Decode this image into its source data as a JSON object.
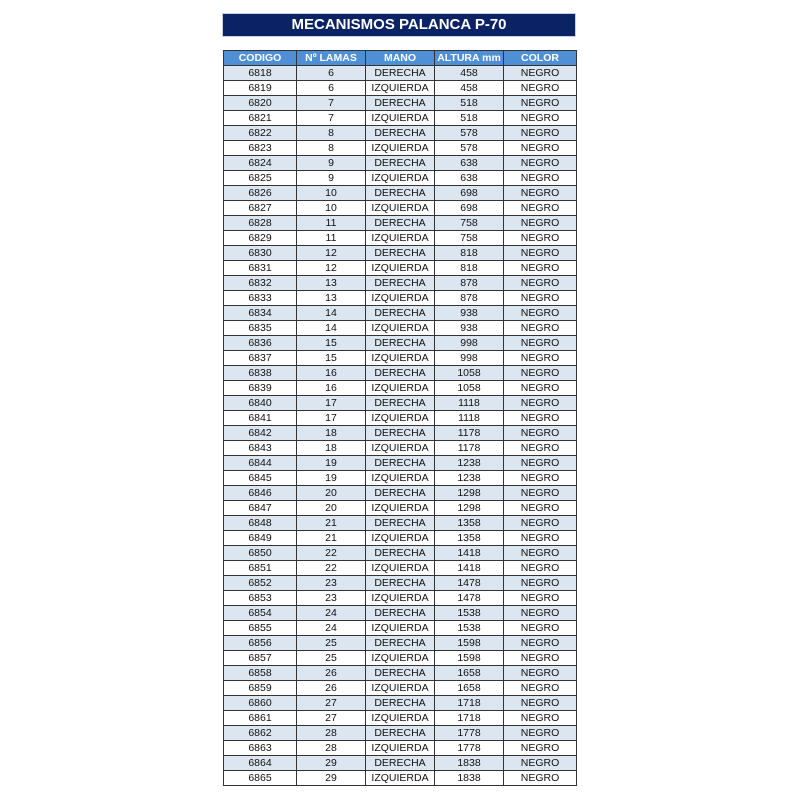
{
  "title": "MECANISMOS PALANCA P-70",
  "colors": {
    "title_bg": "#0b2265",
    "header_bg": "#4f8fd6",
    "row_alt_bg": "#dce6f1"
  },
  "table": {
    "headers": [
      "CODIGO",
      "Nº LAMAS",
      "MANO",
      "ALTURA mm",
      "COLOR"
    ],
    "rows": [
      [
        "6818",
        "6",
        "DERECHA",
        "458",
        "NEGRO"
      ],
      [
        "6819",
        "6",
        "IZQUIERDA",
        "458",
        "NEGRO"
      ],
      [
        "6820",
        "7",
        "DERECHA",
        "518",
        "NEGRO"
      ],
      [
        "6821",
        "7",
        "IZQUIERDA",
        "518",
        "NEGRO"
      ],
      [
        "6822",
        "8",
        "DERECHA",
        "578",
        "NEGRO"
      ],
      [
        "6823",
        "8",
        "IZQUIERDA",
        "578",
        "NEGRO"
      ],
      [
        "6824",
        "9",
        "DERECHA",
        "638",
        "NEGRO"
      ],
      [
        "6825",
        "9",
        "IZQUIERDA",
        "638",
        "NEGRO"
      ],
      [
        "6826",
        "10",
        "DERECHA",
        "698",
        "NEGRO"
      ],
      [
        "6827",
        "10",
        "IZQUIERDA",
        "698",
        "NEGRO"
      ],
      [
        "6828",
        "11",
        "DERECHA",
        "758",
        "NEGRO"
      ],
      [
        "6829",
        "11",
        "IZQUIERDA",
        "758",
        "NEGRO"
      ],
      [
        "6830",
        "12",
        "DERECHA",
        "818",
        "NEGRO"
      ],
      [
        "6831",
        "12",
        "IZQUIERDA",
        "818",
        "NEGRO"
      ],
      [
        "6832",
        "13",
        "DERECHA",
        "878",
        "NEGRO"
      ],
      [
        "6833",
        "13",
        "IZQUIERDA",
        "878",
        "NEGRO"
      ],
      [
        "6834",
        "14",
        "DERECHA",
        "938",
        "NEGRO"
      ],
      [
        "6835",
        "14",
        "IZQUIERDA",
        "938",
        "NEGRO"
      ],
      [
        "6836",
        "15",
        "DERECHA",
        "998",
        "NEGRO"
      ],
      [
        "6837",
        "15",
        "IZQUIERDA",
        "998",
        "NEGRO"
      ],
      [
        "6838",
        "16",
        "DERECHA",
        "1058",
        "NEGRO"
      ],
      [
        "6839",
        "16",
        "IZQUIERDA",
        "1058",
        "NEGRO"
      ],
      [
        "6840",
        "17",
        "DERECHA",
        "1118",
        "NEGRO"
      ],
      [
        "6841",
        "17",
        "IZQUIERDA",
        "1118",
        "NEGRO"
      ],
      [
        "6842",
        "18",
        "DERECHA",
        "1178",
        "NEGRO"
      ],
      [
        "6843",
        "18",
        "IZQUIERDA",
        "1178",
        "NEGRO"
      ],
      [
        "6844",
        "19",
        "DERECHA",
        "1238",
        "NEGRO"
      ],
      [
        "6845",
        "19",
        "IZQUIERDA",
        "1238",
        "NEGRO"
      ],
      [
        "6846",
        "20",
        "DERECHA",
        "1298",
        "NEGRO"
      ],
      [
        "6847",
        "20",
        "IZQUIERDA",
        "1298",
        "NEGRO"
      ],
      [
        "6848",
        "21",
        "DERECHA",
        "1358",
        "NEGRO"
      ],
      [
        "6849",
        "21",
        "IZQUIERDA",
        "1358",
        "NEGRO"
      ],
      [
        "6850",
        "22",
        "DERECHA",
        "1418",
        "NEGRO"
      ],
      [
        "6851",
        "22",
        "IZQUIERDA",
        "1418",
        "NEGRO"
      ],
      [
        "6852",
        "23",
        "DERECHA",
        "1478",
        "NEGRO"
      ],
      [
        "6853",
        "23",
        "IZQUIERDA",
        "1478",
        "NEGRO"
      ],
      [
        "6854",
        "24",
        "DERECHA",
        "1538",
        "NEGRO"
      ],
      [
        "6855",
        "24",
        "IZQUIERDA",
        "1538",
        "NEGRO"
      ],
      [
        "6856",
        "25",
        "DERECHA",
        "1598",
        "NEGRO"
      ],
      [
        "6857",
        "25",
        "IZQUIERDA",
        "1598",
        "NEGRO"
      ],
      [
        "6858",
        "26",
        "DERECHA",
        "1658",
        "NEGRO"
      ],
      [
        "6859",
        "26",
        "IZQUIERDA",
        "1658",
        "NEGRO"
      ],
      [
        "6860",
        "27",
        "DERECHA",
        "1718",
        "NEGRO"
      ],
      [
        "6861",
        "27",
        "IZQUIERDA",
        "1718",
        "NEGRO"
      ],
      [
        "6862",
        "28",
        "DERECHA",
        "1778",
        "NEGRO"
      ],
      [
        "6863",
        "28",
        "IZQUIERDA",
        "1778",
        "NEGRO"
      ],
      [
        "6864",
        "29",
        "DERECHA",
        "1838",
        "NEGRO"
      ],
      [
        "6865",
        "29",
        "IZQUIERDA",
        "1838",
        "NEGRO"
      ]
    ]
  }
}
